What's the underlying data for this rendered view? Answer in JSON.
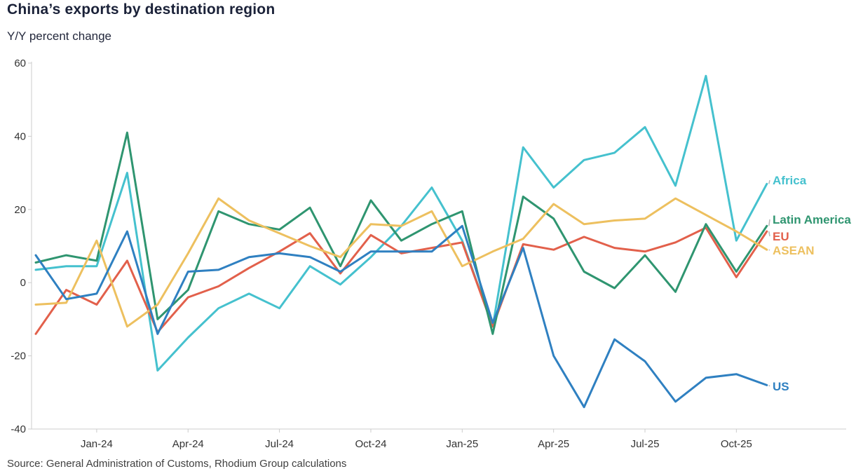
{
  "header": {
    "title": "China’s exports by destination region",
    "subtitle": "Y/Y percent change"
  },
  "footer": {
    "source": "Source: General Administration of Customs, Rhodium Group calculations"
  },
  "colors": {
    "title_text": "#1a2138",
    "axis_line": "#cccccc",
    "tick_text": "#333333",
    "leader_line": "#b8b8b8",
    "africa": "#45c1ce",
    "latin_america": "#2f9570",
    "eu": "#e2604b",
    "asean": "#edc05f",
    "us": "#2f80c1"
  },
  "chart_data": {
    "type": "line",
    "title": "China’s exports by destination region",
    "subtitle": "Y/Y percent change",
    "xlabel": "",
    "ylabel": "Y/Y percent change",
    "ylim": [
      -40,
      60
    ],
    "grid": false,
    "legend_position": "line-end-labels-right",
    "x": [
      "Nov-23",
      "Dec-23",
      "Jan-24",
      "Feb-24",
      "Mar-24",
      "Apr-24",
      "May-24",
      "Jun-24",
      "Jul-24",
      "Aug-24",
      "Sep-24",
      "Oct-24",
      "Nov-24",
      "Dec-24",
      "Jan-25",
      "Feb-25",
      "Mar-25",
      "Apr-25",
      "May-25",
      "Jun-25",
      "Jul-25",
      "Aug-25",
      "Sep-25",
      "Oct-25",
      "Nov-25"
    ],
    "xticks": [
      "Jan-24",
      "Apr-24",
      "Jul-24",
      "Oct-24",
      "Jan-25",
      "Apr-25",
      "Jul-25",
      "Oct-25"
    ],
    "yticks": [
      60,
      40,
      20,
      0,
      -20,
      -40
    ],
    "series": [
      {
        "name": "Africa",
        "color": "#45c1ce",
        "values": [
          3.5,
          4.5,
          4.5,
          30,
          -24,
          -15,
          -7,
          -3,
          -7,
          4.5,
          -0.5,
          7,
          15.5,
          26,
          11.5,
          -12,
          37,
          26,
          33.5,
          35.5,
          42.5,
          26.5,
          56.5,
          11.5,
          27
        ]
      },
      {
        "name": "EU",
        "color": "#e2604b",
        "values": [
          -14,
          -2,
          -6,
          6,
          -13.5,
          -4,
          -1,
          4,
          8.5,
          13.5,
          2.5,
          13,
          8,
          9.5,
          11,
          -12,
          10.5,
          9,
          12.5,
          9.5,
          8.5,
          11,
          15,
          1.5,
          14
        ]
      },
      {
        "name": "Latin America",
        "color": "#2f9570",
        "values": [
          5.5,
          7.5,
          6,
          41,
          -10,
          -2,
          19.5,
          16,
          14.5,
          20.5,
          4.5,
          22.5,
          11.5,
          16,
          19.5,
          -14,
          23.5,
          17.5,
          3,
          -1.5,
          7.5,
          -2.5,
          16,
          3,
          15.5
        ]
      },
      {
        "name": "ASEAN",
        "color": "#edc05f",
        "values": [
          -6,
          -5.5,
          11.5,
          -12,
          -6,
          8,
          23,
          17,
          13.5,
          10,
          7,
          16,
          15.5,
          19.5,
          4.5,
          8.5,
          12,
          21.5,
          16,
          17,
          17.5,
          23,
          18.5,
          14,
          9
        ]
      },
      {
        "name": "US",
        "color": "#2f80c1",
        "values": [
          7.5,
          -4.5,
          -3,
          14,
          -14,
          3,
          3.5,
          7,
          8,
          7,
          3,
          8.5,
          8.5,
          8.5,
          15.5,
          -11,
          9.5,
          -20,
          -34,
          -15.5,
          -21.5,
          -32.5,
          -26,
          -25,
          -28
        ]
      }
    ]
  }
}
